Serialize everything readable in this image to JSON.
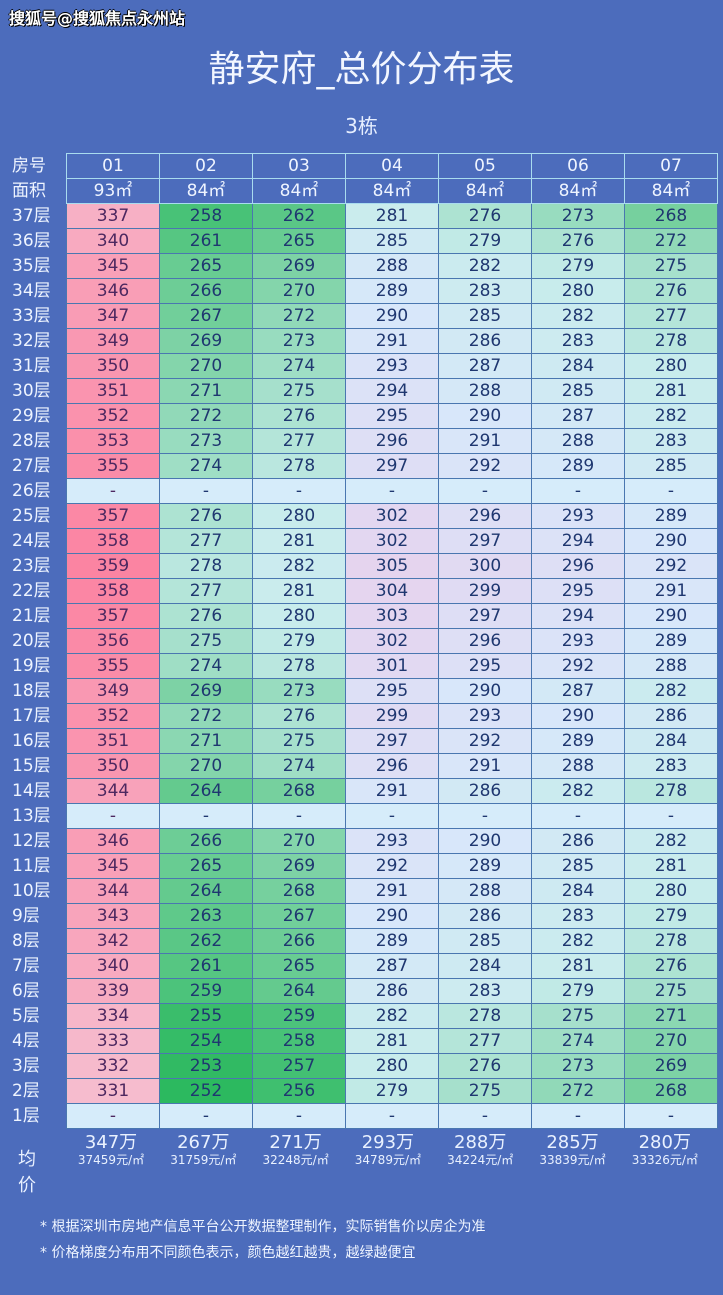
{
  "watermark": "搜狐号@搜狐焦点永州站",
  "title": "静安府_总价分布表",
  "subtitle": "3栋",
  "colors": {
    "background": "#4c6cbc",
    "cheap": "#2cb95f",
    "mid": "#d8ecfa",
    "expensive": "#fb8aa6"
  },
  "chart_data": {
    "type": "heatmap",
    "row_header_label": "房号",
    "area_label": "面积",
    "columns": [
      "01",
      "02",
      "03",
      "04",
      "05",
      "06",
      "07"
    ],
    "areas": [
      "93㎡",
      "84㎡",
      "84㎡",
      "84㎡",
      "84㎡",
      "84㎡",
      "84㎡"
    ],
    "rows": [
      {
        "floor": "37层",
        "values": [
          337,
          258,
          262,
          281,
          276,
          273,
          268
        ]
      },
      {
        "floor": "36层",
        "values": [
          340,
          261,
          265,
          285,
          279,
          276,
          272
        ]
      },
      {
        "floor": "35层",
        "values": [
          345,
          265,
          269,
          288,
          282,
          279,
          275
        ]
      },
      {
        "floor": "34层",
        "values": [
          346,
          266,
          270,
          289,
          283,
          280,
          276
        ]
      },
      {
        "floor": "33层",
        "values": [
          347,
          267,
          272,
          290,
          285,
          282,
          277
        ]
      },
      {
        "floor": "32层",
        "values": [
          349,
          269,
          273,
          291,
          286,
          283,
          278
        ]
      },
      {
        "floor": "31层",
        "values": [
          350,
          270,
          274,
          293,
          287,
          284,
          280
        ]
      },
      {
        "floor": "30层",
        "values": [
          351,
          271,
          275,
          294,
          288,
          285,
          281
        ]
      },
      {
        "floor": "29层",
        "values": [
          352,
          272,
          276,
          295,
          290,
          287,
          282
        ]
      },
      {
        "floor": "28层",
        "values": [
          353,
          273,
          277,
          296,
          291,
          288,
          283
        ]
      },
      {
        "floor": "27层",
        "values": [
          355,
          274,
          278,
          297,
          292,
          289,
          285
        ]
      },
      {
        "floor": "26层",
        "values": [
          "-",
          "-",
          "-",
          "-",
          "-",
          "-",
          "-"
        ]
      },
      {
        "floor": "25层",
        "values": [
          357,
          276,
          280,
          302,
          296,
          293,
          289
        ]
      },
      {
        "floor": "24层",
        "values": [
          358,
          277,
          281,
          302,
          297,
          294,
          290
        ]
      },
      {
        "floor": "23层",
        "values": [
          359,
          278,
          282,
          305,
          300,
          296,
          292
        ]
      },
      {
        "floor": "22层",
        "values": [
          358,
          277,
          281,
          304,
          299,
          295,
          291
        ]
      },
      {
        "floor": "21层",
        "values": [
          357,
          276,
          280,
          303,
          297,
          294,
          290
        ]
      },
      {
        "floor": "20层",
        "values": [
          356,
          275,
          279,
          302,
          296,
          293,
          289
        ]
      },
      {
        "floor": "19层",
        "values": [
          355,
          274,
          278,
          301,
          295,
          292,
          288
        ]
      },
      {
        "floor": "18层",
        "values": [
          349,
          269,
          273,
          295,
          290,
          287,
          282
        ]
      },
      {
        "floor": "17层",
        "values": [
          352,
          272,
          276,
          299,
          293,
          290,
          286
        ]
      },
      {
        "floor": "16层",
        "values": [
          351,
          271,
          275,
          297,
          292,
          289,
          284
        ]
      },
      {
        "floor": "15层",
        "values": [
          350,
          270,
          274,
          296,
          291,
          288,
          283
        ]
      },
      {
        "floor": "14层",
        "values": [
          344,
          264,
          268,
          291,
          286,
          282,
          278
        ]
      },
      {
        "floor": "13层",
        "values": [
          "-",
          "-",
          "-",
          "-",
          "-",
          "-",
          "-"
        ]
      },
      {
        "floor": "12层",
        "values": [
          346,
          266,
          270,
          293,
          290,
          286,
          282
        ]
      },
      {
        "floor": "11层",
        "values": [
          345,
          265,
          269,
          292,
          289,
          285,
          281
        ]
      },
      {
        "floor": "10层",
        "values": [
          344,
          264,
          268,
          291,
          288,
          284,
          280
        ]
      },
      {
        "floor": "9层",
        "values": [
          343,
          263,
          267,
          290,
          286,
          283,
          279
        ]
      },
      {
        "floor": "8层",
        "values": [
          342,
          262,
          266,
          289,
          285,
          282,
          278
        ]
      },
      {
        "floor": "7层",
        "values": [
          340,
          261,
          265,
          287,
          284,
          281,
          276
        ]
      },
      {
        "floor": "6层",
        "values": [
          339,
          259,
          264,
          286,
          283,
          279,
          275
        ]
      },
      {
        "floor": "5层",
        "values": [
          334,
          255,
          259,
          282,
          278,
          275,
          271
        ]
      },
      {
        "floor": "4层",
        "values": [
          333,
          254,
          258,
          281,
          277,
          274,
          270
        ]
      },
      {
        "floor": "3层",
        "values": [
          332,
          253,
          257,
          280,
          276,
          273,
          269
        ]
      },
      {
        "floor": "2层",
        "values": [
          331,
          252,
          256,
          279,
          275,
          272,
          268
        ]
      },
      {
        "floor": "1层",
        "values": [
          "-",
          "-",
          "-",
          "-",
          "-",
          "-",
          "-"
        ]
      }
    ],
    "average_label": "均价",
    "averages": [
      {
        "total": "347万",
        "unit": "37459元/㎡"
      },
      {
        "total": "267万",
        "unit": "31759元/㎡"
      },
      {
        "total": "271万",
        "unit": "32248元/㎡"
      },
      {
        "total": "293万",
        "unit": "34789元/㎡"
      },
      {
        "total": "288万",
        "unit": "34224元/㎡"
      },
      {
        "total": "285万",
        "unit": "33839元/㎡"
      },
      {
        "total": "280万",
        "unit": "33326元/㎡"
      }
    ]
  },
  "notes": [
    "* 根据深圳市房地产信息平台公开数据整理制作，实际销售价以房企为准",
    "* 价格梯度分布用不同颜色表示，颜色越红越贵，越绿越便宜"
  ]
}
